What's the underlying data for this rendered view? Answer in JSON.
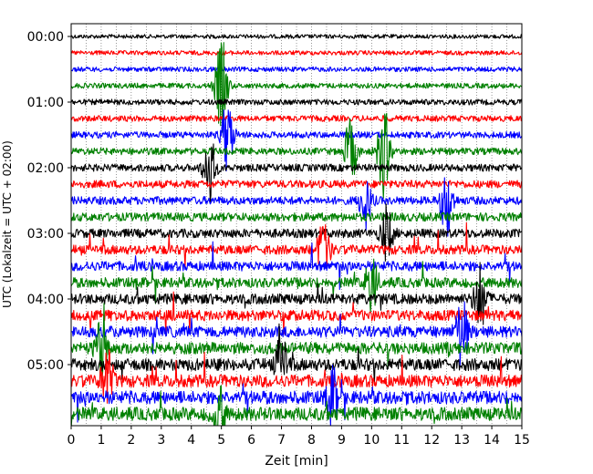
{
  "chart_data": {
    "type": "line",
    "title": "",
    "xlabel": "Zeit  [min]",
    "ylabel": "UTC (Lokalzeit = UTC + 02:00)",
    "xlim": [
      0,
      15
    ],
    "x_ticks": [
      "0",
      "1",
      "2",
      "3",
      "4",
      "5",
      "6",
      "7",
      "8",
      "9",
      "10",
      "11",
      "12",
      "13",
      "14",
      "15"
    ],
    "y_ticks": [
      {
        "label": "00:00",
        "hour": 0
      },
      {
        "label": "01:00",
        "hour": 1
      },
      {
        "label": "02:00",
        "hour": 2
      },
      {
        "label": "03:00",
        "hour": 3
      },
      {
        "label": "04:00",
        "hour": 4
      },
      {
        "label": "05:00",
        "hour": 5
      }
    ],
    "trace_interval_min": 15,
    "trace_count": 24,
    "trace_colors": [
      "#000000",
      "#ff0000",
      "#0000ff",
      "#008000"
    ],
    "vertical_grid": "dotted",
    "events": [
      {
        "trace": 3,
        "x": 5.0,
        "amp": 3.0
      },
      {
        "trace": 6,
        "x": 5.2,
        "amp": 2.2
      },
      {
        "trace": 7,
        "x": 9.3,
        "amp": 2.0
      },
      {
        "trace": 7,
        "x": 10.4,
        "amp": 2.8
      },
      {
        "trace": 8,
        "x": 4.6,
        "amp": 2.2
      },
      {
        "trace": 10,
        "x": 9.8,
        "amp": 1.6
      },
      {
        "trace": 10,
        "x": 12.5,
        "amp": 2.2
      },
      {
        "trace": 12,
        "x": 10.5,
        "amp": 1.6
      },
      {
        "trace": 13,
        "x": 8.4,
        "amp": 1.8
      },
      {
        "trace": 15,
        "x": 10.0,
        "amp": 1.6
      },
      {
        "trace": 16,
        "x": 13.6,
        "amp": 2.0
      },
      {
        "trace": 18,
        "x": 13.0,
        "amp": 2.2
      },
      {
        "trace": 19,
        "x": 1.0,
        "amp": 1.8
      },
      {
        "trace": 20,
        "x": 7.0,
        "amp": 1.8
      },
      {
        "trace": 21,
        "x": 1.2,
        "amp": 1.8
      },
      {
        "trace": 22,
        "x": 8.7,
        "amp": 1.6
      },
      {
        "trace": 23,
        "x": 4.9,
        "amp": 1.8
      }
    ]
  }
}
